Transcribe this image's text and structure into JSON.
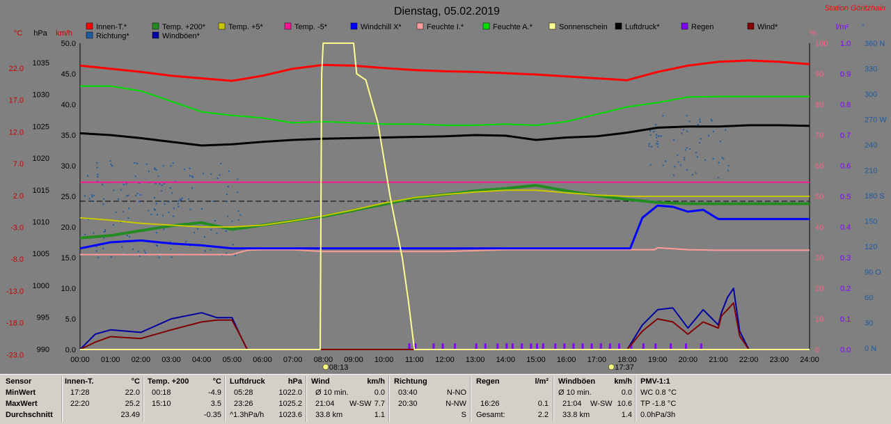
{
  "title": "Dienstag, 05.02.2019",
  "station": "Station Göritzhain",
  "legend": [
    {
      "label": "Innen-T.*",
      "color": "#ff0000"
    },
    {
      "label": "Temp. +200*",
      "color": "#228b22"
    },
    {
      "label": "Temp. +5*",
      "color": "#c8c800"
    },
    {
      "label": "Temp. -5*",
      "color": "#ff1493"
    },
    {
      "label": "Windchill X*",
      "color": "#0000ff"
    },
    {
      "label": "Feuchte I.*",
      "color": "#ff9c9c"
    },
    {
      "label": "Feuchte A.*",
      "color": "#00e000"
    },
    {
      "label": "Sonnenschein",
      "color": "#ffff90"
    },
    {
      "label": "Luftdruck*",
      "color": "#000000"
    },
    {
      "label": "Regen",
      "color": "#8000ff"
    },
    {
      "label": "Wind*",
      "color": "#800000"
    },
    {
      "label": "Richtung*",
      "color": "#1e5aa0"
    },
    {
      "label": "Windböen*",
      "color": "#0000a0"
    }
  ],
  "axes": {
    "celsius": {
      "unit": "°C",
      "ticks": [
        "22.0",
        "17.0",
        "12.0",
        "7.0",
        "2.0",
        "-3.0",
        "-8.0",
        "-13.0",
        "-18.0",
        "-23.0"
      ]
    },
    "hpa": {
      "unit": "hPa",
      "ticks": [
        "1035",
        "1030",
        "1025",
        "1020",
        "1015",
        "1010",
        "1005",
        "1000",
        "995",
        "990"
      ]
    },
    "kmh": {
      "unit": "km/h",
      "ticks": [
        "50.0",
        "45.0",
        "40.0",
        "35.0",
        "30.0",
        "25.0",
        "20.0",
        "15.0",
        "10.0",
        "5.0",
        "0.0"
      ]
    },
    "percent": {
      "unit": "%",
      "ticks": [
        "100",
        "90",
        "80",
        "70",
        "60",
        "50",
        "40",
        "30",
        "20",
        "10",
        "0"
      ]
    },
    "rain": {
      "unit": "l/m²",
      "ticks": [
        "1.0",
        "0.9",
        "0.8",
        "0.7",
        "0.6",
        "0.5",
        "0.4",
        "0.3",
        "0.2",
        "0.1",
        "0.0"
      ]
    },
    "direction": {
      "unit": "°",
      "ticks": [
        "360 N",
        "330",
        "300",
        "270 W",
        "240",
        "210",
        "180 S",
        "150",
        "120",
        "90 O",
        "60",
        "30",
        "0 N"
      ]
    },
    "time": [
      "00:00",
      "01:00",
      "02:00",
      "03:00",
      "04:00",
      "05:00",
      "06:00",
      "07:00",
      "08:00",
      "09:00",
      "10:00",
      "11:00",
      "12:00",
      "13:00",
      "14:00",
      "15:00",
      "16:00",
      "17:00",
      "18:00",
      "19:00",
      "20:00",
      "21:00",
      "22:00",
      "23:00",
      "24:00"
    ],
    "sunrise": "08:13",
    "sunset": "17:37"
  },
  "chart_data": {
    "type": "line",
    "title": "Dienstag, 05.02.2019",
    "x_range": [
      0,
      24
    ],
    "primary_ylim_kmh": [
      0,
      50
    ],
    "series": [
      {
        "name": "Innen-T.*",
        "axis": "celsius",
        "x": [
          0,
          1,
          2,
          3,
          4,
          5,
          6,
          7,
          8,
          9,
          10,
          11,
          12,
          13,
          14,
          15,
          16,
          17,
          18,
          19,
          20,
          21,
          22,
          23,
          24
        ],
        "y": [
          22.2,
          21.7,
          21.2,
          20.6,
          20.2,
          19.8,
          20.6,
          21.7,
          22.3,
          22.2,
          21.8,
          21.5,
          21.3,
          21.2,
          21.0,
          20.8,
          20.5,
          20.2,
          19.9,
          21.2,
          22.2,
          22.8,
          23.0,
          22.8,
          22.4
        ]
      },
      {
        "name": "Feuchte A.*",
        "axis": "kmh",
        "x": [
          0,
          1,
          2,
          3,
          4,
          5,
          6,
          7,
          8,
          9,
          10,
          11,
          12,
          13,
          14,
          15,
          16,
          17,
          18,
          19,
          20,
          21,
          22,
          23,
          24
        ],
        "y": [
          43.0,
          43.0,
          42.2,
          40.5,
          38.8,
          38.2,
          37.8,
          37.0,
          37.2,
          37.0,
          36.8,
          36.8,
          36.6,
          36.6,
          36.8,
          36.6,
          37.2,
          38.4,
          39.6,
          40.3,
          41.2,
          41.3,
          41.3,
          41.3,
          41.3
        ]
      },
      {
        "name": "Luftdruck*",
        "axis": "kmh",
        "x": [
          0,
          1,
          2,
          3,
          4,
          5,
          6,
          7,
          8,
          9,
          10,
          11,
          12,
          13,
          14,
          15,
          16,
          17,
          18,
          19,
          20,
          21,
          22,
          23,
          24
        ],
        "y": [
          35.3,
          35.0,
          34.5,
          33.9,
          33.3,
          33.5,
          33.9,
          34.2,
          34.4,
          34.5,
          34.6,
          34.7,
          34.8,
          35.0,
          34.9,
          34.2,
          34.6,
          34.8,
          35.4,
          36.2,
          36.4,
          36.4,
          36.6,
          36.6,
          36.5
        ]
      },
      {
        "name": "Temp. -5*",
        "axis": "kmh",
        "x": [
          0,
          24
        ],
        "y": [
          27.3,
          27.3
        ]
      },
      {
        "name": "Temp. +5*",
        "axis": "kmh",
        "x": [
          0,
          1,
          2,
          3,
          4,
          5,
          6,
          7,
          8,
          9,
          10,
          11,
          12,
          13,
          14,
          15,
          16,
          17,
          18,
          19,
          20,
          21,
          22,
          23,
          24
        ],
        "y": [
          21.5,
          21.1,
          20.6,
          20.3,
          20.0,
          20.0,
          20.3,
          21.0,
          21.8,
          22.8,
          23.9,
          24.8,
          25.3,
          25.7,
          26.0,
          26.0,
          25.6,
          25.2,
          25.0,
          25.0,
          25.0,
          25.0,
          25.0,
          25.0,
          25.0
        ]
      },
      {
        "name": "Temp. +200*",
        "axis": "kmh",
        "x": [
          0,
          1,
          2,
          3,
          4,
          5,
          6,
          7,
          8,
          9,
          10,
          11,
          12,
          13,
          14,
          15,
          16,
          17,
          18,
          19,
          20,
          21,
          22,
          23,
          24
        ],
        "y": [
          18.2,
          18.6,
          19.4,
          20.2,
          20.7,
          19.6,
          20.3,
          21.0,
          21.7,
          22.7,
          23.7,
          24.7,
          25.3,
          25.9,
          26.3,
          26.8,
          25.9,
          25.1,
          24.5,
          24.0,
          23.8,
          23.8,
          23.8,
          23.8,
          23.8
        ]
      },
      {
        "name": "Windchill X*",
        "axis": "kmh",
        "x": [
          0,
          1,
          2,
          3,
          4,
          5,
          6,
          7,
          8,
          9,
          10,
          11,
          12,
          13,
          14,
          15,
          16,
          17,
          18,
          18.1,
          18.5,
          19,
          19.5,
          20,
          20.5,
          21,
          22,
          23,
          24
        ],
        "y": [
          16.5,
          17.5,
          17.8,
          17.3,
          17.0,
          16.5,
          16.5,
          16.5,
          16.5,
          16.5,
          16.5,
          16.5,
          16.5,
          16.5,
          16.5,
          16.5,
          16.5,
          16.5,
          16.5,
          16.5,
          21.5,
          23.5,
          23.3,
          22.5,
          22.8,
          21.3,
          21.3,
          21.3,
          21.3
        ]
      },
      {
        "name": "Feuchte I.*",
        "axis": "kmh",
        "x": [
          0,
          5,
          5.5,
          6,
          7,
          8,
          9,
          12,
          14,
          16,
          17,
          18,
          18.9,
          19,
          20,
          21,
          22,
          23,
          24
        ],
        "y": [
          15.5,
          15.5,
          16.2,
          16.3,
          16.3,
          16.0,
          16.0,
          16.0,
          16.3,
          16.3,
          16.3,
          16.3,
          16.3,
          16.6,
          16.3,
          16.2,
          16.2,
          16.2,
          16.2
        ]
      },
      {
        "name": "Sonnenschein",
        "axis": "kmh",
        "x": [
          0,
          7.9,
          7.95,
          8.0,
          9.0,
          9.1,
          9.4,
          9.8,
          10.0,
          10.2,
          10.4,
          10.6,
          10.8,
          11.0,
          24
        ],
        "y": [
          0,
          0,
          45,
          50,
          50,
          45,
          44,
          37,
          31,
          25,
          20,
          15,
          8,
          0,
          0
        ]
      },
      {
        "name": "Wind*",
        "axis": "kmh",
        "x": [
          0,
          0.5,
          1,
          2,
          3,
          4,
          4.5,
          5,
          5.3,
          5.5,
          18,
          18.5,
          19,
          19.5,
          20,
          20.5,
          21,
          21.1,
          21.3,
          21.5,
          21.7,
          22,
          24
        ],
        "y": [
          0,
          1.2,
          2.1,
          1.8,
          3.2,
          4.5,
          4.8,
          4.8,
          2.0,
          0,
          0,
          3.0,
          5.0,
          4.5,
          2.5,
          4.5,
          3.5,
          5.5,
          6.5,
          7.6,
          2.2,
          0,
          0
        ]
      },
      {
        "name": "Windböen*",
        "axis": "kmh",
        "x": [
          0,
          0.5,
          1,
          2,
          3,
          4,
          4.5,
          5,
          5.3,
          5.5,
          18,
          18.5,
          19,
          19.5,
          20,
          20.5,
          21,
          21.1,
          21.3,
          21.5,
          21.7,
          22,
          24
        ],
        "y": [
          0,
          2.5,
          3.2,
          2.8,
          5.0,
          6.0,
          5.2,
          5.2,
          2.0,
          0,
          0,
          4.0,
          6.5,
          6.8,
          3.5,
          6.5,
          4.0,
          6.0,
          8.5,
          10.0,
          3.0,
          0,
          0
        ]
      }
    ],
    "rain_bars": {
      "axis": "rain",
      "y_per_bar": 0.02,
      "x": [
        10.8,
        11.0,
        11.6,
        11.9,
        12.3,
        13.0,
        13.3,
        13.7,
        14.0,
        14.2,
        14.5,
        14.8,
        15.0,
        15.2,
        15.6,
        15.9,
        16.2,
        16.5,
        16.8,
        17.1,
        17.4,
        17.7,
        18.1,
        18.5,
        18.9,
        19.4,
        19.9,
        20.4
      ]
    },
    "reference_line_kmh": 24.2
  },
  "stats": {
    "sensor": {
      "header": "Sensor",
      "rows": [
        "MinWert",
        "MaxWert",
        "Durchschnitt"
      ]
    },
    "innen": {
      "header": "Innen-T.",
      "unit": "°C",
      "min_time": "17:28",
      "min": "22.0",
      "max_time": "22:20",
      "max": "25.2",
      "avg": "23.49"
    },
    "temp200": {
      "header": "Temp. +200",
      "unit": "°C",
      "min_time": "00:18",
      "min": "-4.9",
      "max_time": "15:10",
      "max": "3.5",
      "avg": "-0.35"
    },
    "druck": {
      "header": "Luftdruck",
      "unit": "hPa",
      "min_time": "05:28",
      "min": "1022.0",
      "max_time": "23:26",
      "max": "1025.2",
      "avg_label": "^1.3hPa/h",
      "avg": "1023.6"
    },
    "wind": {
      "header": "Wind",
      "unit": "km/h",
      "r1a": "Ø 10 min.",
      "r1b": "0.0",
      "r2a": "21:04",
      "r2m": "W-SW",
      "r2b": "7.7",
      "r3a": "33.8 km",
      "r3b": "1.1"
    },
    "richtung": {
      "header": "Richtung",
      "r1a": "03:40",
      "r1b": "N-NO",
      "r2a": "20:30",
      "r2b": "N-NW",
      "r3b": "S"
    },
    "regen": {
      "header": "Regen",
      "unit": "l/m²",
      "r2a": "16:26",
      "r2b": "0.1",
      "r3a": "Gesamt:",
      "r3b": "2.2"
    },
    "boeen": {
      "header": "Windböen",
      "unit": "km/h",
      "r1a": "Ø 10 min.",
      "r1b": "0.0",
      "r2a": "21:04",
      "r2m": "W-SW",
      "r2b": "10.6",
      "r3a": "33.8 km",
      "r3b": "1.4"
    },
    "pmv": {
      "header": "PMV-1:1",
      "r1": "WC 0.8 °C",
      "r2": "TP -1.8 °C",
      "r3": "0.0hPa/3h"
    }
  }
}
